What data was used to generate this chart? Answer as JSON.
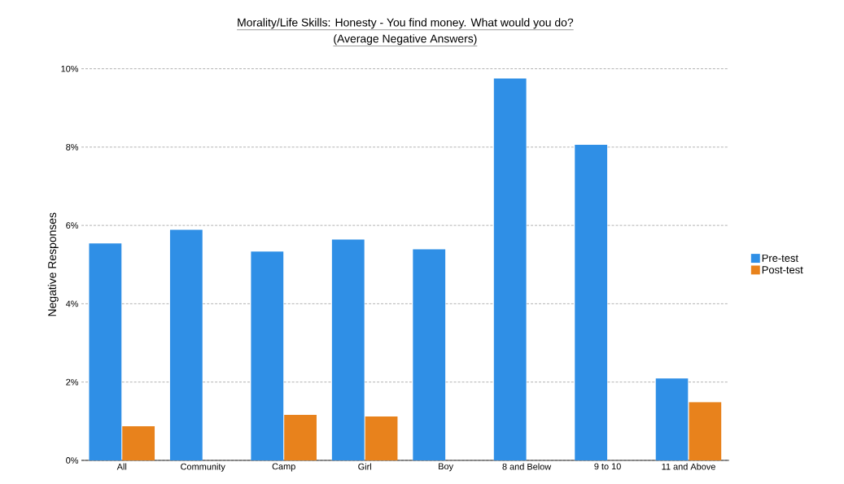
{
  "chart_data": {
    "type": "bar",
    "title": "Morality/Life Skills: Honesty - You find money. What would you do?",
    "subtitle": "(Average Negative Answers)",
    "ylabel": "Negative Responses",
    "categories": [
      "All",
      "Community",
      "Camp",
      "Girl",
      "Boy",
      "8 and Below",
      "9 to 10",
      "11 and Above"
    ],
    "series": [
      {
        "name": "Pre-test",
        "color": "#2f8fe6",
        "values": [
          5.54,
          5.89,
          5.33,
          5.64,
          5.39,
          9.75,
          8.06,
          2.09
        ]
      },
      {
        "name": "Post-test",
        "color": "#e8821c",
        "values": [
          0.87,
          null,
          1.16,
          1.12,
          null,
          null,
          null,
          1.49
        ]
      }
    ],
    "ylim": [
      0,
      10
    ],
    "yticks": [
      {
        "value": 0,
        "label": "0%"
      },
      {
        "value": 2,
        "label": "2%"
      },
      {
        "value": 4,
        "label": "4%"
      },
      {
        "value": 6,
        "label": "6%"
      },
      {
        "value": 8,
        "label": "8%"
      },
      {
        "value": 10,
        "label": "10%"
      }
    ],
    "grid": "y",
    "legend": "right"
  }
}
